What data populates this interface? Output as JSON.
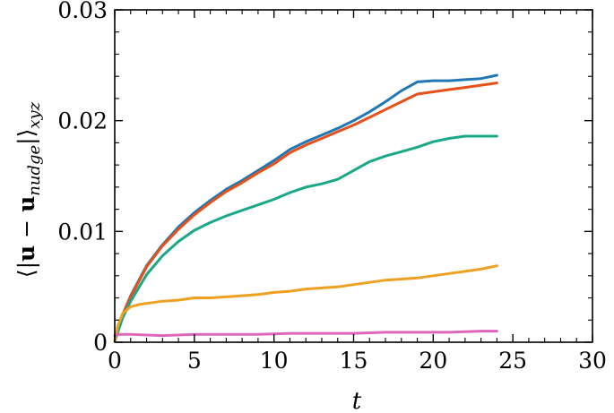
{
  "chart_data": {
    "type": "line",
    "title": "",
    "xlabel": "t",
    "ylabel": {
      "prefix": "⟨|",
      "bold_u1": "u",
      "minus": " − ",
      "bold_u2": "u",
      "subscript_nudge": "nudge",
      "suffix": "|⟩",
      "subscript_xyz": "xyz"
    },
    "xlim": [
      0,
      30
    ],
    "ylim": [
      0,
      0.03
    ],
    "xticks": [
      0,
      5,
      10,
      15,
      20,
      25,
      30
    ],
    "xtick_labels": [
      "0",
      "5",
      "10",
      "15",
      "20",
      "25",
      "30"
    ],
    "yticks": [
      0,
      0.01,
      0.02,
      0.03
    ],
    "ytick_labels": [
      "0",
      "0.01",
      "0.02",
      "0.03"
    ],
    "grid": false,
    "legend": "none",
    "series": [
      {
        "color": "#1f77b4",
        "x": [
          0,
          0.5,
          1,
          2,
          3,
          4,
          5,
          6,
          7,
          8,
          9,
          10,
          11,
          12,
          13,
          14,
          15,
          16,
          17,
          18,
          19,
          20,
          21,
          22,
          23,
          24
        ],
        "y": [
          0.0001,
          0.0025,
          0.0042,
          0.0069,
          0.0088,
          0.0104,
          0.0117,
          0.0128,
          0.0138,
          0.0146,
          0.0155,
          0.0164,
          0.0174,
          0.0181,
          0.0187,
          0.0193,
          0.02,
          0.0208,
          0.0217,
          0.0227,
          0.0235,
          0.0236,
          0.0236,
          0.0237,
          0.0238,
          0.0241
        ]
      },
      {
        "color": "#e8501a",
        "x": [
          0,
          0.5,
          1,
          2,
          3,
          4,
          5,
          6,
          7,
          8,
          9,
          10,
          11,
          12,
          13,
          14,
          15,
          16,
          17,
          18,
          19,
          20,
          21,
          22,
          23,
          24
        ],
        "y": [
          0.0001,
          0.0025,
          0.0041,
          0.0068,
          0.0087,
          0.0102,
          0.0115,
          0.0126,
          0.0136,
          0.0144,
          0.0153,
          0.0161,
          0.0171,
          0.0178,
          0.0184,
          0.019,
          0.0196,
          0.0203,
          0.021,
          0.0217,
          0.0224,
          0.0226,
          0.0228,
          0.023,
          0.0232,
          0.0234
        ]
      },
      {
        "color": "#1aa887",
        "x": [
          0,
          0.5,
          1,
          2,
          3,
          4,
          5,
          6,
          7,
          8,
          9,
          10,
          11,
          12,
          13,
          14,
          15,
          16,
          17,
          18,
          19,
          20,
          21,
          22,
          23,
          24
        ],
        "y": [
          0.0001,
          0.0022,
          0.0037,
          0.0061,
          0.0078,
          0.0091,
          0.0101,
          0.0108,
          0.0114,
          0.0119,
          0.0124,
          0.0129,
          0.0135,
          0.014,
          0.0143,
          0.0147,
          0.0155,
          0.0163,
          0.0168,
          0.0172,
          0.0176,
          0.0181,
          0.0184,
          0.0186,
          0.0186,
          0.0186
        ]
      },
      {
        "color": "#f0a020",
        "x": [
          0,
          0.2,
          0.5,
          1,
          1.5,
          2,
          3,
          4,
          5,
          6,
          7,
          8,
          9,
          10,
          11,
          12,
          13,
          14,
          15,
          16,
          17,
          18,
          19,
          20,
          21,
          22,
          23,
          24
        ],
        "y": [
          0.0001,
          0.0015,
          0.0026,
          0.0032,
          0.0034,
          0.0035,
          0.0037,
          0.0038,
          0.004,
          0.004,
          0.0041,
          0.0042,
          0.0043,
          0.0045,
          0.0046,
          0.0048,
          0.0049,
          0.005,
          0.0052,
          0.0054,
          0.0056,
          0.0057,
          0.0058,
          0.006,
          0.0062,
          0.0064,
          0.0066,
          0.0069
        ]
      },
      {
        "color": "#dd66bb",
        "x": [
          0,
          0.3,
          1,
          3,
          5,
          7,
          9,
          11,
          13,
          15,
          17,
          19,
          21,
          23,
          24
        ],
        "y": [
          0.0006,
          0.0007,
          0.0007,
          0.0006,
          0.0007,
          0.0007,
          0.0007,
          0.0008,
          0.0008,
          0.0008,
          0.0009,
          0.0009,
          0.0009,
          0.001,
          0.001
        ]
      }
    ]
  }
}
